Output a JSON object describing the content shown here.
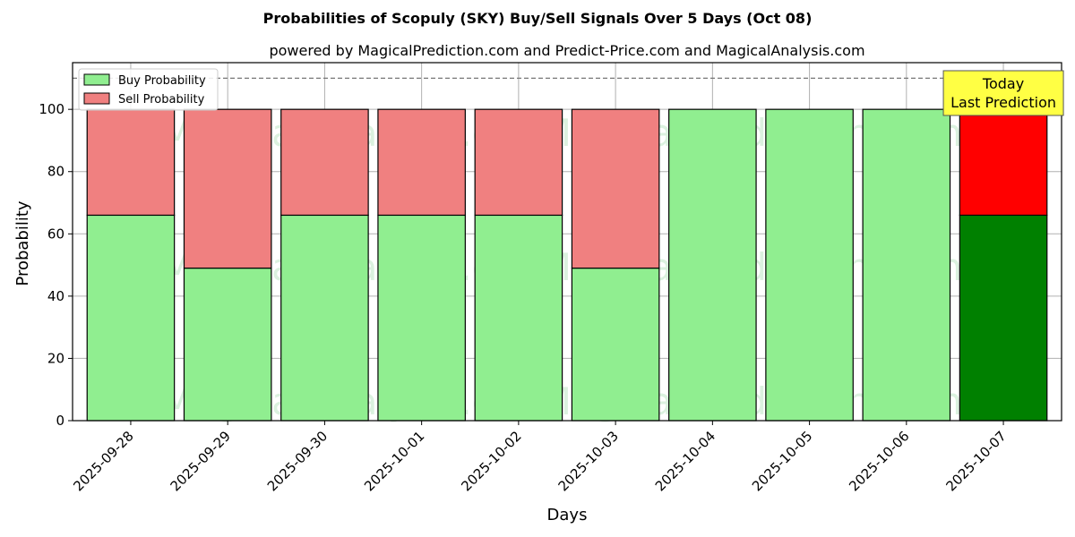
{
  "chart_data": {
    "type": "bar",
    "stacked": true,
    "title": "Probabilities of Scopuly (SKY) Buy/Sell Signals Over 5 Days (Oct 08)",
    "subtitle": "powered by MagicalPrediction.com and Predict-Price.com and MagicalAnalysis.com",
    "xlabel": "Days",
    "ylabel": "Probability",
    "ylim": [
      0,
      115
    ],
    "yticks": [
      0,
      20,
      40,
      60,
      80,
      100
    ],
    "grid": true,
    "legend_position": "top-left",
    "reference_line": 110,
    "categories": [
      "2025-09-28",
      "2025-09-29",
      "2025-09-30",
      "2025-10-01",
      "2025-10-02",
      "2025-10-03",
      "2025-10-04",
      "2025-10-05",
      "2025-10-06",
      "2025-10-07"
    ],
    "series": [
      {
        "name": "Buy Probability",
        "color": "#90ee90",
        "values": [
          66,
          49,
          66,
          66,
          66,
          49,
          100,
          100,
          100,
          66
        ]
      },
      {
        "name": "Sell Probability",
        "color": "#f08080",
        "values": [
          34,
          51,
          34,
          34,
          34,
          51,
          0,
          0,
          0,
          34
        ]
      }
    ],
    "highlight": {
      "index": 9,
      "buy_color": "#008000",
      "sell_color": "#ff0000"
    },
    "annotation": {
      "lines": [
        "Today",
        "Last Prediction"
      ],
      "color": "#ffff44"
    },
    "watermarks": [
      "MagicalAnalysis.com",
      "MagicalPrediction.com"
    ]
  }
}
